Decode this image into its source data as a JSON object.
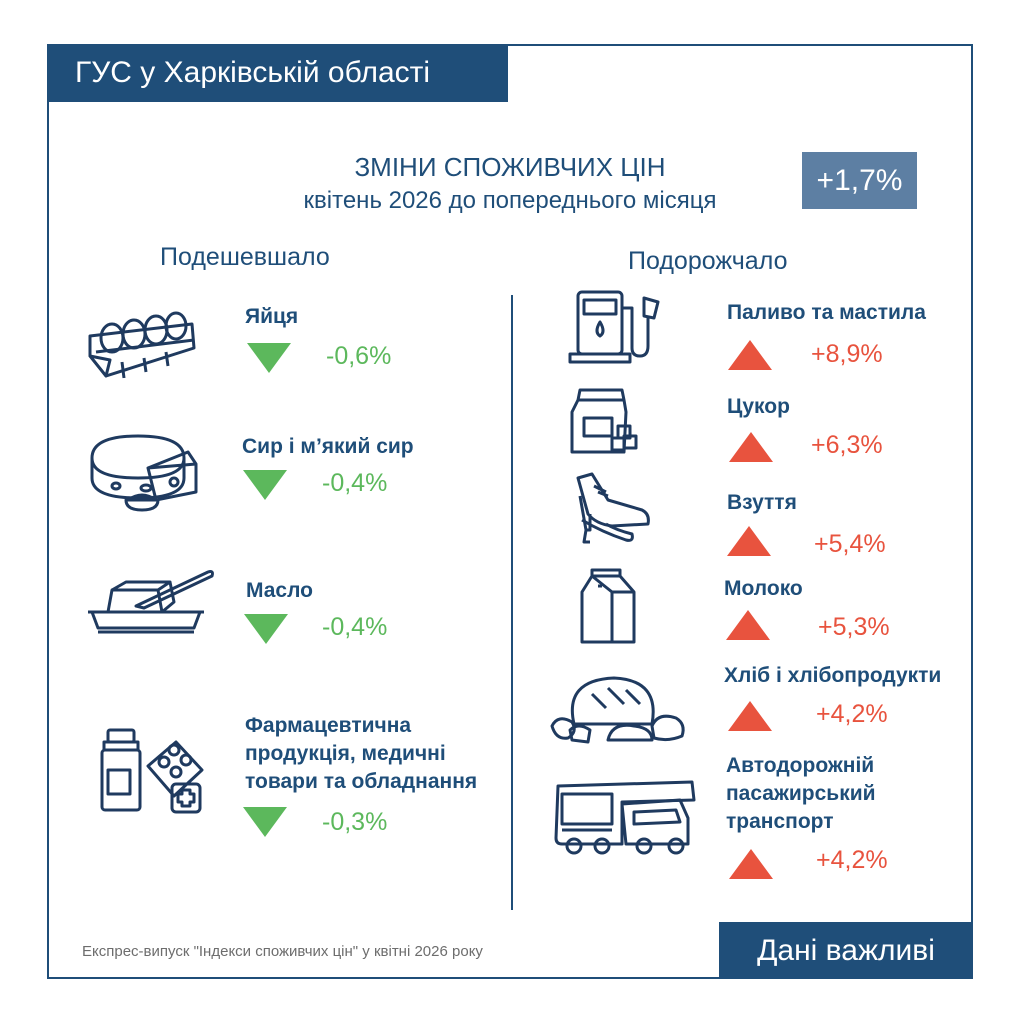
{
  "header": {
    "org": "ГУС у Харківській області"
  },
  "title": {
    "line1": "ЗМІНИ СПОЖИВЧИХ ЦІН",
    "line2": "квітень 2026 до попереднього місяця"
  },
  "total_change": "+1,7%",
  "columns": {
    "cheaper": "Подешевшало",
    "pricier": "Подорожчало"
  },
  "cheaper": [
    {
      "label": "Яйця",
      "value": "-0,6%",
      "icon": "eggs-icon"
    },
    {
      "label": "Сир і м’який сир",
      "value": "-0,4%",
      "icon": "cheese-icon"
    },
    {
      "label": "Масло",
      "value": "-0,4%",
      "icon": "butter-icon"
    },
    {
      "label": "Фармацевтична продукція, медичні товари та обладнання",
      "label_lines": [
        "Фармацевтична",
        "продукція, медичні",
        "товари та обладнання"
      ],
      "value": "-0,3%",
      "icon": "pharmacy-icon"
    }
  ],
  "pricier": [
    {
      "label": "Паливо та мастила",
      "value": "+8,9%",
      "icon": "fuel-pump-icon"
    },
    {
      "label": "Цукор",
      "value": "+6,3%",
      "icon": "sugar-bag-icon"
    },
    {
      "label": "Взуття",
      "value": "+5,4%",
      "icon": "shoes-icon"
    },
    {
      "label": "Молоко",
      "value": "+5,3%",
      "icon": "milk-carton-icon"
    },
    {
      "label": "Хліб і хлібопродукти",
      "value": "+4,2%",
      "icon": "bread-icon"
    },
    {
      "label": "Автодорожній пасажирський транспорт",
      "label_lines": [
        "Автодорожній",
        "пасажирський",
        "транспорт"
      ],
      "value": "+4,2%",
      "icon": "bus-icon"
    }
  ],
  "footer": {
    "note": "Експрес-випуск \"Індекси споживчих цін\" у квітні 2026 року",
    "tag": "Дані важливі"
  },
  "colors": {
    "primary": "#1f4e79",
    "badge": "#5d7fa3",
    "decrease": "#5cb85c",
    "increase": "#e8533e"
  }
}
